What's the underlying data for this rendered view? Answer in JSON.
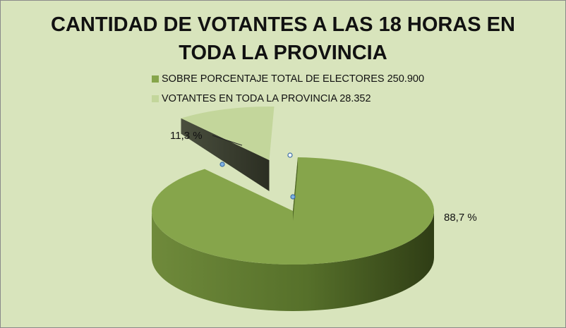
{
  "chart_data": {
    "type": "pie",
    "title_lines": [
      "CANTIDAD DE VOTANTES A LAS 18 HORAS EN",
      "TODA LA PROVINCIA"
    ],
    "legend_placement": "top",
    "slices": [
      {
        "name": "SOBRE PORCENTAJE TOTAL DE ELECTORES 250.900",
        "value": 88.7,
        "label": "88,7 %",
        "color": "#86a54b",
        "exploded": false
      },
      {
        "name": "VOTANTES EN TODA LA PROVINCIA 28.352",
        "value": 11.3,
        "label": "11,3 %",
        "color": "#c3d69b",
        "exploded": true
      }
    ]
  }
}
